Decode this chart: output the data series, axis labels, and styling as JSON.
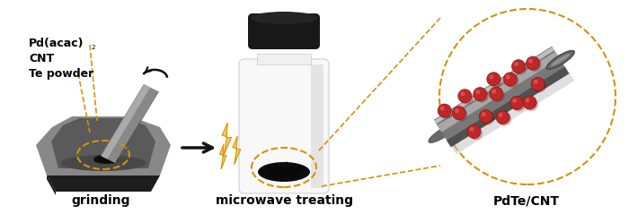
{
  "background_color": "#ffffff",
  "labels": {
    "grinding": "grinding",
    "microwave": "microwave treating",
    "pdtecnt": "PdTe/CNT"
  },
  "colors": {
    "mortar_top": "#909090",
    "mortar_mid": "#707070",
    "mortar_dark": "#2a2a2a",
    "pestle": "#909090",
    "pestle_dark": "#606060",
    "arrow": "#111111",
    "dashed_gold": "#D4920A",
    "lightning_fill": "#F5D060",
    "lightning_outline": "#D4920A",
    "black_powder": "#111111",
    "bottle_body": "#f5f5f5",
    "bottle_shadow": "#cccccc",
    "bottle_cap": "#1a1a1a",
    "cnt_body": "#808080",
    "cnt_highlight": "#aaaaaa",
    "cnt_shadow": "#505050",
    "cnt_cap": "#707070",
    "pd_red": "#c02828",
    "pd_highlight": "#e06060",
    "text_color": "#000000"
  },
  "figsize": [
    7.0,
    2.39
  ],
  "dpi": 100
}
